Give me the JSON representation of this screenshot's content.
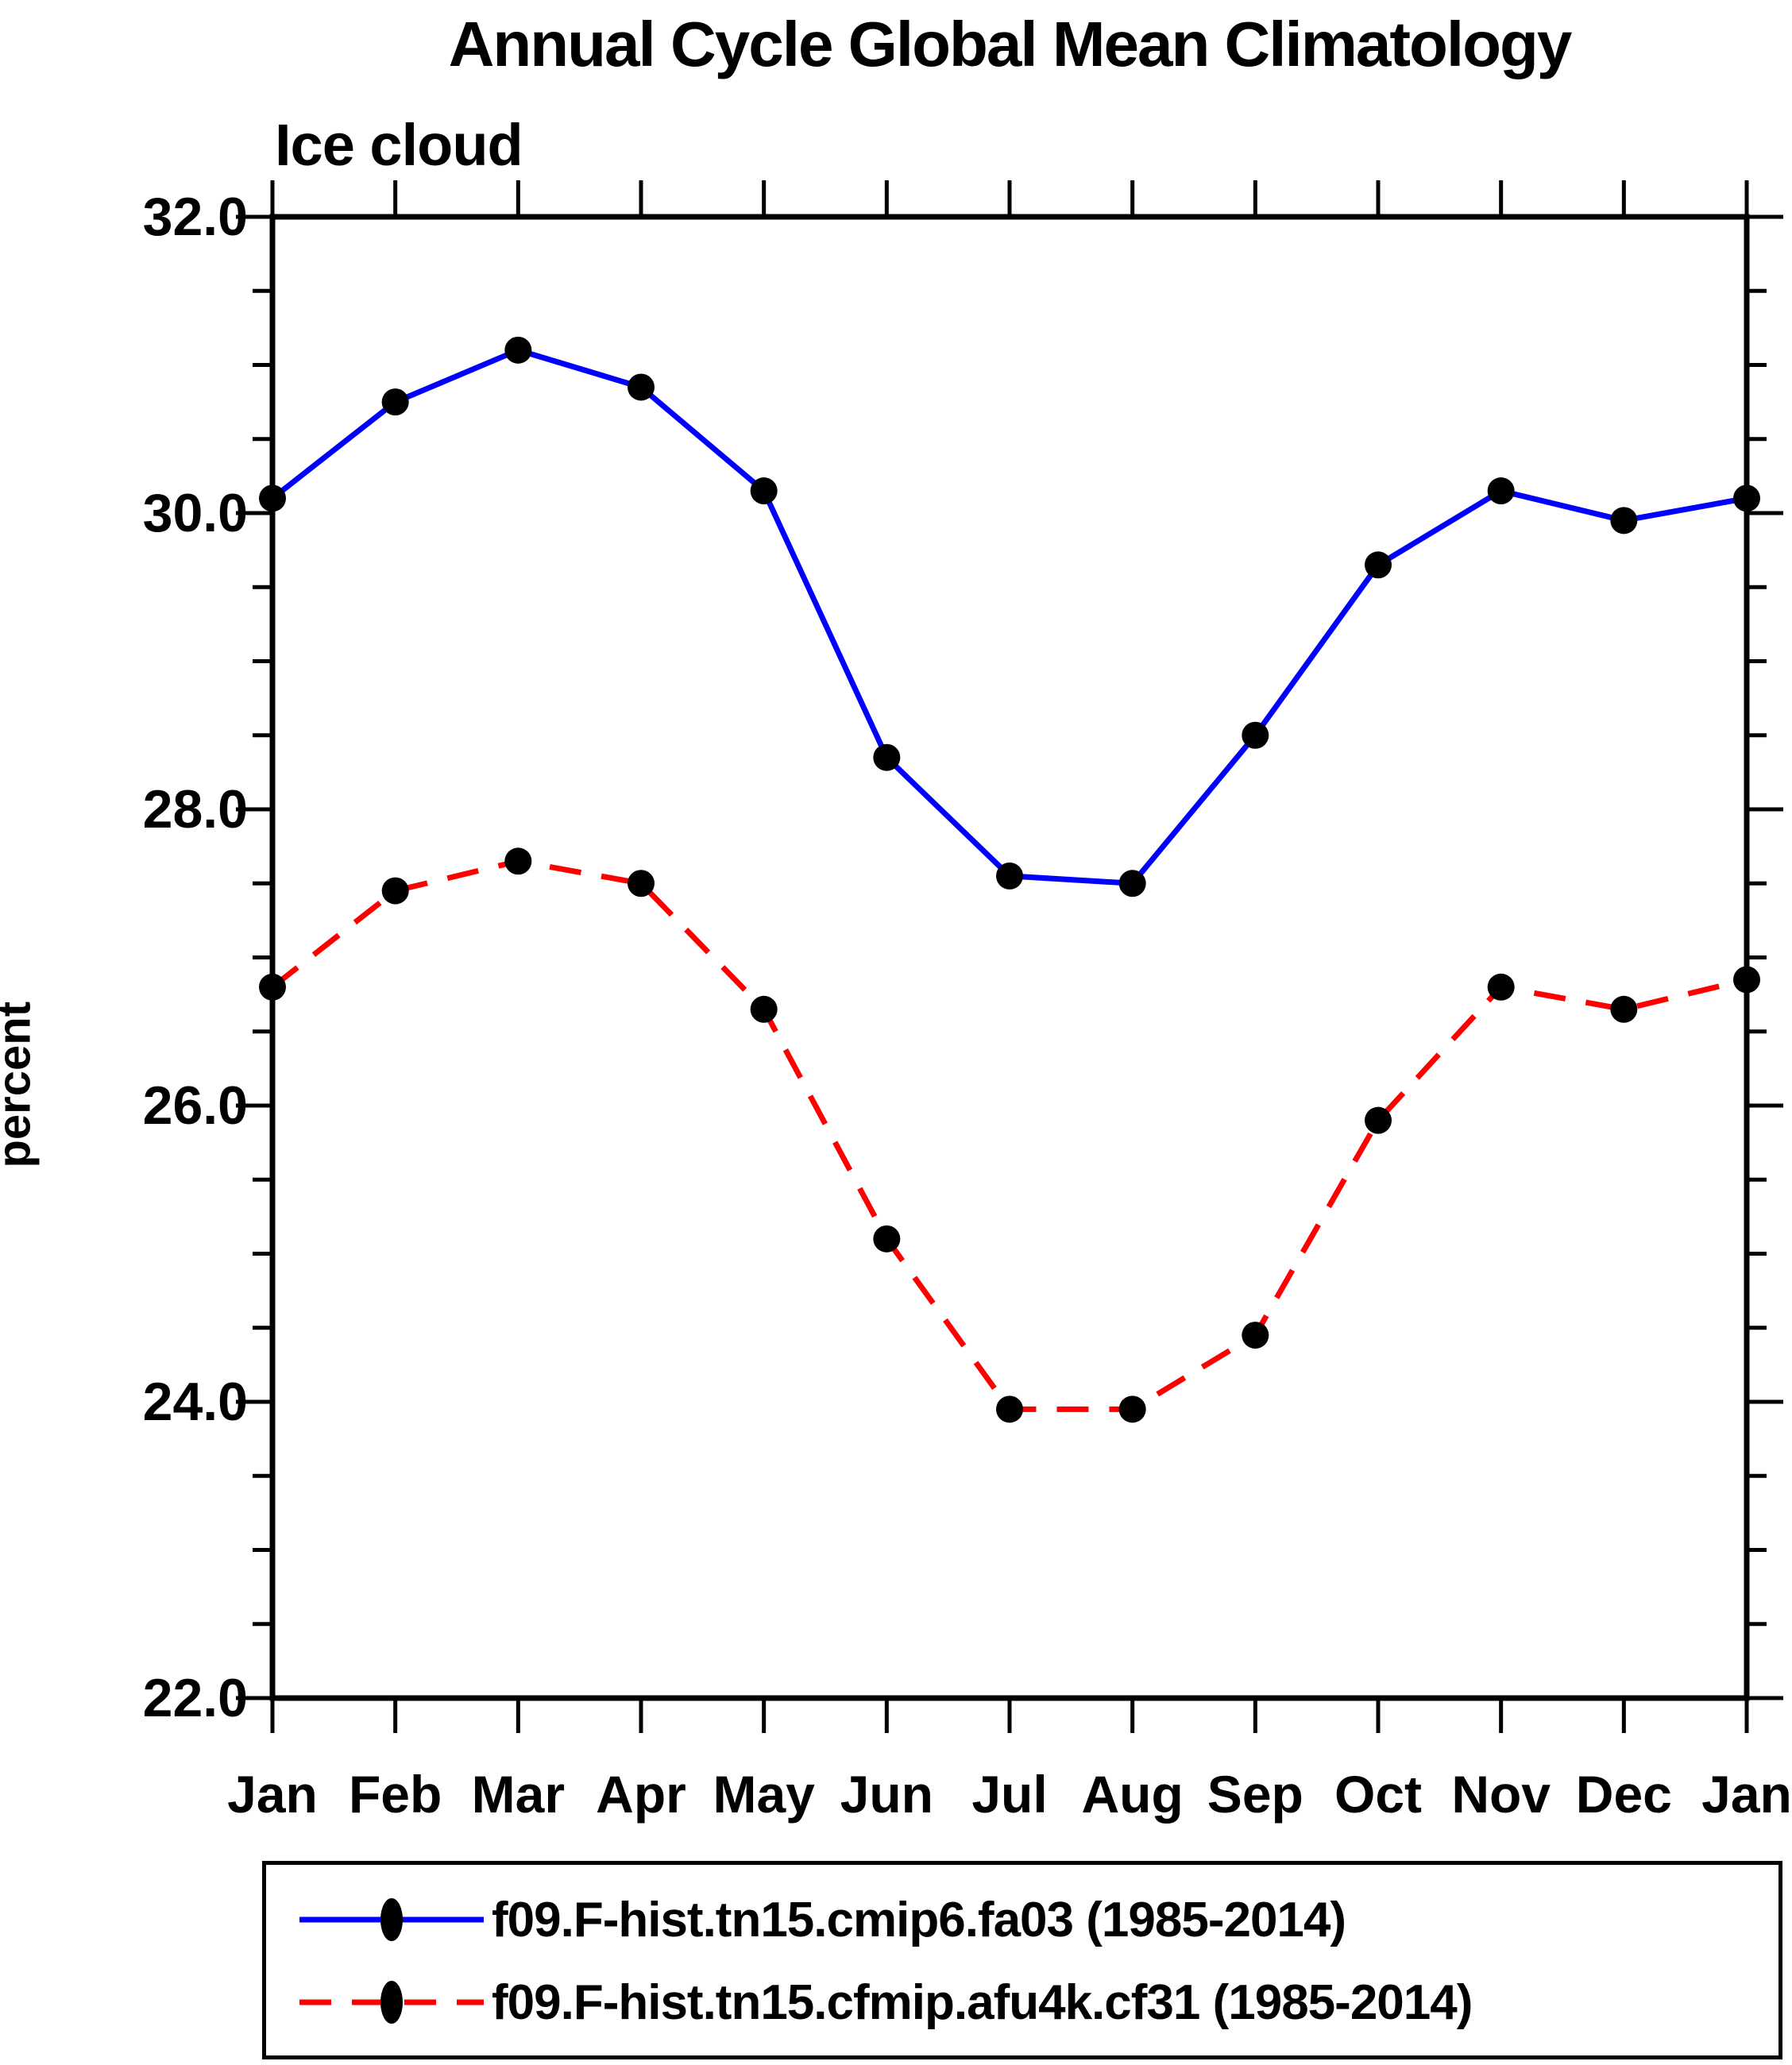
{
  "chart_data": {
    "type": "line",
    "title": "Annual Cycle Global Mean Climatology",
    "subtitle": "Ice cloud",
    "ylabel": "percent",
    "xlabel": "",
    "categories": [
      "Jan",
      "Feb",
      "Mar",
      "Apr",
      "May",
      "Jun",
      "Jul",
      "Aug",
      "Sep",
      "Oct",
      "Nov",
      "Dec",
      "Jan"
    ],
    "ylim": [
      22.0,
      32.0
    ],
    "ytick_major": 2.0,
    "ytick_minor": 0.5,
    "ytick_labels": [
      "22.0",
      "24.0",
      "26.0",
      "28.0",
      "30.0",
      "32.0"
    ],
    "grid": false,
    "legend_position": "bottom",
    "marker_color": "#000000",
    "axis_color": "#000000",
    "series": [
      {
        "name": "f09.F-hist.tn15.cmip6.fa03 (1985-2014)",
        "color": "#0000ff",
        "style": "solid",
        "values": [
          30.1,
          30.75,
          31.1,
          30.85,
          30.15,
          28.35,
          27.55,
          27.5,
          28.5,
          29.65,
          30.15,
          29.95,
          30.1
        ]
      },
      {
        "name": "f09.F-hist.tn15.cfmip.afu4k.cf31 (1985-2014)",
        "color": "#ff0000",
        "style": "dashed",
        "values": [
          26.8,
          27.45,
          27.65,
          27.5,
          26.65,
          25.1,
          23.95,
          23.95,
          24.45,
          25.9,
          26.8,
          26.65,
          26.85
        ]
      }
    ]
  }
}
